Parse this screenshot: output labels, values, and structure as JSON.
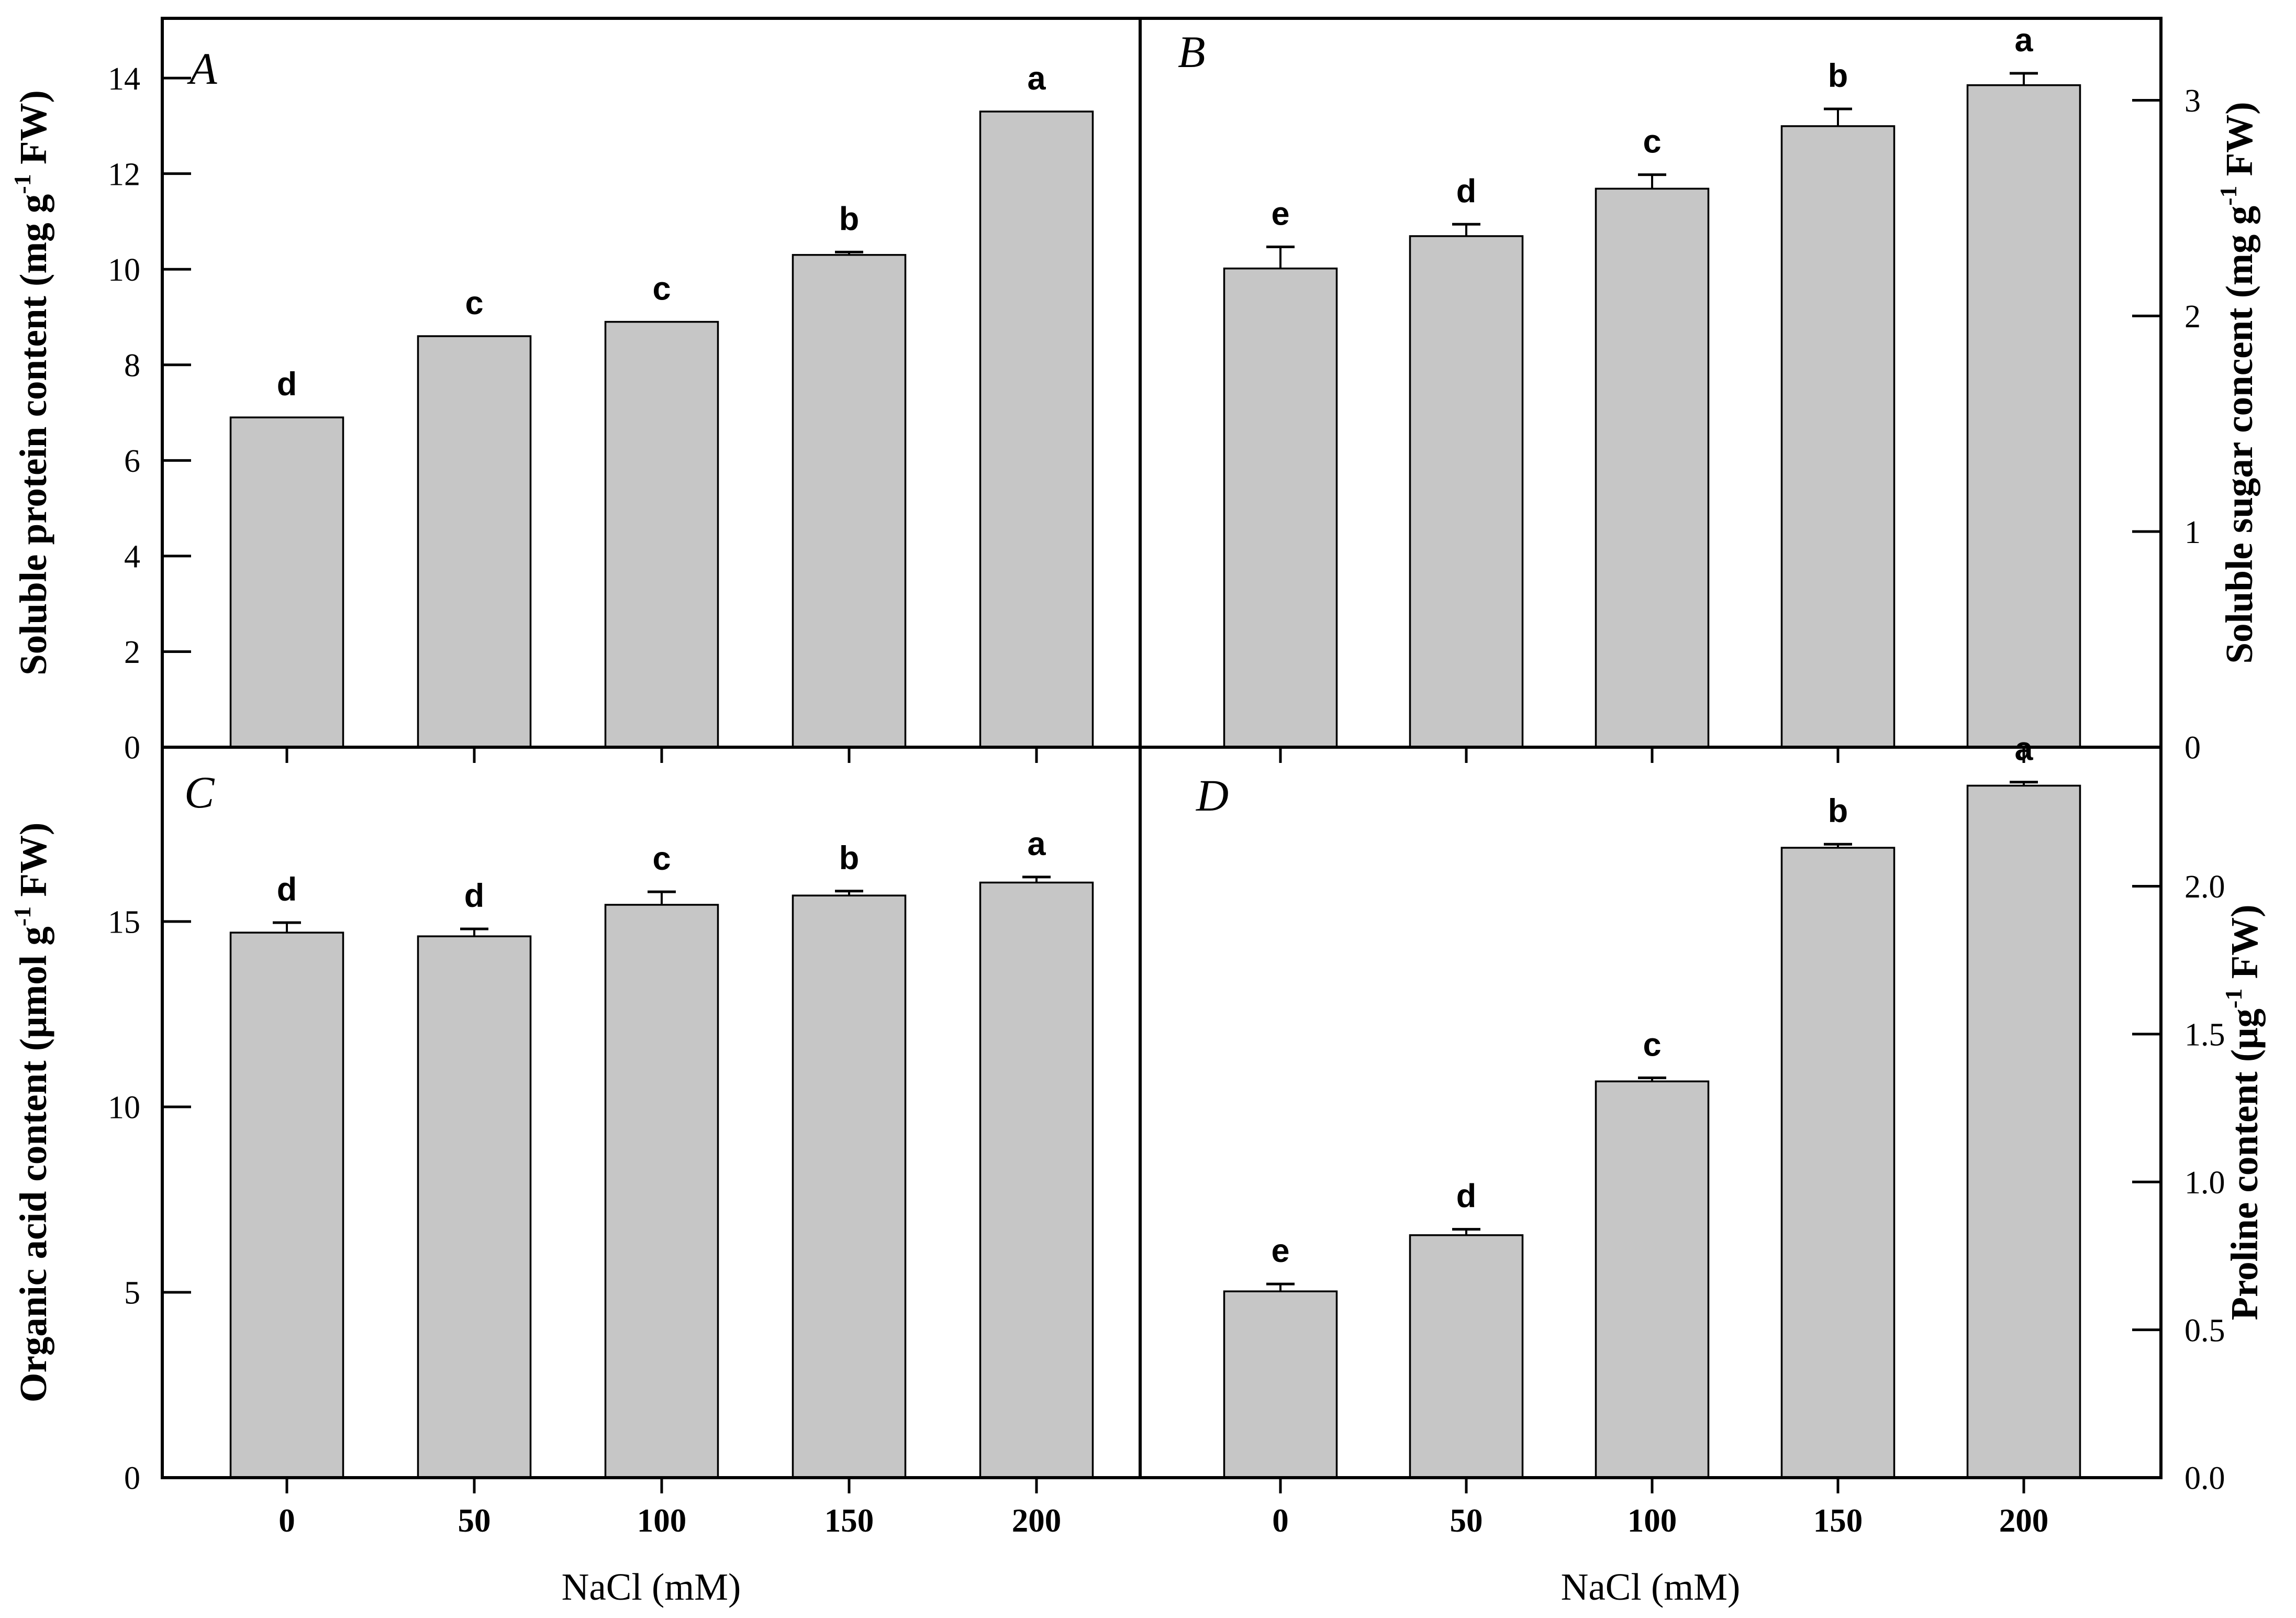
{
  "figure": {
    "kind": "four-panel bar figure",
    "background": "#ffffff",
    "frame_color": "#000000"
  },
  "chart_data": {
    "type": "bar",
    "categories": [
      "0",
      "50",
      "100",
      "150",
      "200"
    ],
    "xlabel": "NaCl (mM)",
    "bar_color": "#c6c6c6",
    "bar_edge_color": "#000000",
    "error_bar_color": "#000000",
    "grid": false,
    "legend": "none",
    "panels": [
      {
        "id": "A",
        "panel_label": "A",
        "position": "top-left",
        "axis_side": "left",
        "ylabel_pre": "Soluble protein content (mg g",
        "ylabel_sup": "-1",
        "ylabel_post": " FW)",
        "ylim": [
          0,
          15.25
        ],
        "yticks": [
          "0",
          "2",
          "4",
          "6",
          "8",
          "10",
          "12",
          "14"
        ],
        "values": [
          6.9,
          8.6,
          8.9,
          10.3,
          13.3
        ],
        "errors": [
          0,
          0,
          0,
          0.06,
          0
        ],
        "letters": [
          "d",
          "c",
          "c",
          "b",
          "a"
        ]
      },
      {
        "id": "B",
        "panel_label": "B",
        "position": "top-right",
        "axis_side": "right",
        "ylabel_pre": "Soluble sugar concent (mg g",
        "ylabel_sup": "-1",
        "ylabel_post": " FW)",
        "ylim": [
          0,
          3.38
        ],
        "yticks": [
          "0",
          "1",
          "2",
          "3"
        ],
        "values": [
          2.22,
          2.37,
          2.59,
          2.88,
          3.07
        ],
        "errors": [
          0.1,
          0.055,
          0.065,
          0.08,
          0.055
        ],
        "letters": [
          "e",
          "d",
          "c",
          "b",
          "a"
        ]
      },
      {
        "id": "C",
        "panel_label": "C",
        "position": "bottom-left",
        "axis_side": "left",
        "ylabel_pre": "Organic acid content (μmol g",
        "ylabel_sup": "-1",
        "ylabel_post": " FW)",
        "ylim": [
          0,
          19.7
        ],
        "yticks": [
          "0",
          "5",
          "10",
          "15"
        ],
        "values": [
          14.7,
          14.6,
          15.45,
          15.7,
          16.05
        ],
        "errors": [
          0.27,
          0.2,
          0.35,
          0.12,
          0.15
        ],
        "letters": [
          "d",
          "d",
          "c",
          "b",
          "a"
        ]
      },
      {
        "id": "D",
        "panel_label": "D",
        "position": "bottom-right",
        "axis_side": "right",
        "ylabel_pre": "Proline content (μg",
        "ylabel_sup": "-1",
        "ylabel_post": " FW)",
        "ylim": [
          0,
          2.47
        ],
        "yticks": [
          "0.0",
          "0.5",
          "1.0",
          "1.5",
          "2.0"
        ],
        "values": [
          0.63,
          0.82,
          1.34,
          2.13,
          2.34
        ],
        "errors": [
          0.025,
          0.02,
          0.012,
          0.012,
          0.012
        ],
        "letters": [
          "e",
          "d",
          "c",
          "b",
          "a"
        ]
      }
    ]
  }
}
